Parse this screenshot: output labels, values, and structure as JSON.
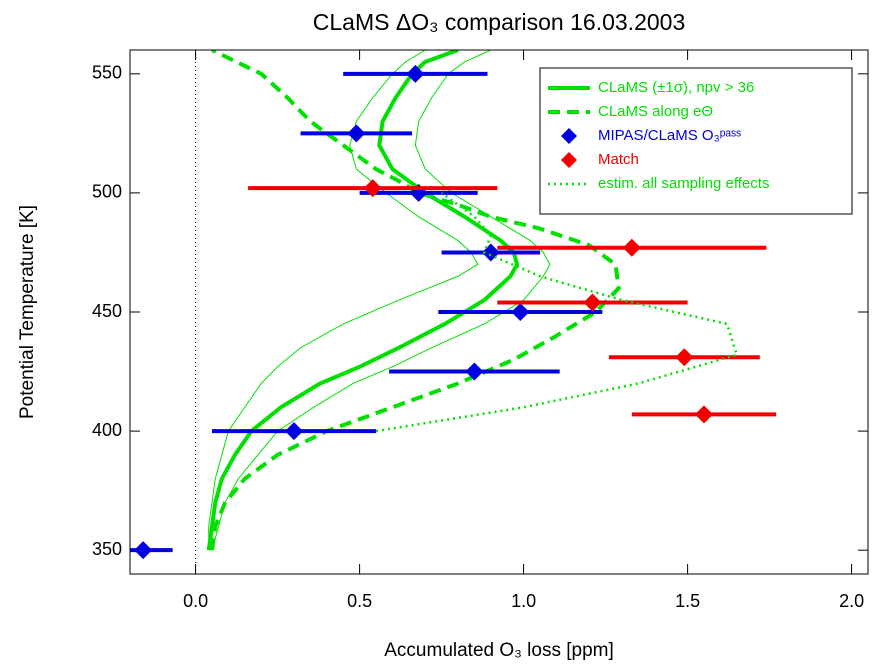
{
  "chart_data": {
    "type": "profile",
    "title": "CLaMS ΔO₃ comparison  16.03.2003",
    "x_label": "Accumulated O₃ loss [ppm]",
    "y_label": "Potential Temperature [K]",
    "xlim": [
      -0.2,
      2.05
    ],
    "ylim": [
      340,
      560
    ],
    "xticks": [
      {
        "value": 0,
        "label": "0.0"
      },
      {
        "value": 0.5,
        "label": "0.5"
      },
      {
        "value": 1,
        "label": "1.0"
      },
      {
        "value": 1.5,
        "label": "1.5"
      },
      {
        "value": 2,
        "label": "2.0"
      }
    ],
    "yticks": [
      350,
      400,
      450,
      500,
      550
    ],
    "legend": "top right",
    "series": [
      {
        "name": "CLaMS (±1σ), npv > 36",
        "kind": "line",
        "style": "solid",
        "color": "#00e000",
        "y": [
          350,
          360,
          370,
          380,
          385,
          390,
          400,
          410,
          420,
          427,
          435,
          445,
          455,
          465,
          470,
          475,
          480,
          490,
          500,
          510,
          520,
          530,
          540,
          550,
          555,
          560
        ],
        "x": [
          0.04,
          0.05,
          0.06,
          0.08,
          0.1,
          0.12,
          0.17,
          0.26,
          0.38,
          0.5,
          0.62,
          0.76,
          0.88,
          0.96,
          0.98,
          0.97,
          0.93,
          0.82,
          0.7,
          0.6,
          0.56,
          0.57,
          0.61,
          0.66,
          0.7,
          0.8
        ],
        "x_lower": [
          0.04,
          0.04,
          0.05,
          0.06,
          0.07,
          0.08,
          0.1,
          0.15,
          0.2,
          0.25,
          0.32,
          0.45,
          0.62,
          0.8,
          0.86,
          0.84,
          0.8,
          0.68,
          0.58,
          0.49,
          0.47,
          0.49,
          0.54,
          0.6,
          0.64,
          0.7
        ],
        "x_upper": [
          0.05,
          0.07,
          0.09,
          0.13,
          0.16,
          0.19,
          0.25,
          0.36,
          0.48,
          0.6,
          0.72,
          0.88,
          1.0,
          1.06,
          1.08,
          1.06,
          1.02,
          0.9,
          0.78,
          0.7,
          0.67,
          0.68,
          0.72,
          0.77,
          0.82,
          0.9
        ]
      },
      {
        "name": "CLaMS along eΘ",
        "kind": "line",
        "style": "dashed",
        "color": "#00e000",
        "y": [
          350,
          360,
          370,
          380,
          390,
          400,
          410,
          420,
          430,
          440,
          450,
          460,
          470,
          478,
          485,
          490,
          495,
          500,
          505,
          510,
          520,
          530,
          540,
          550,
          560
        ],
        "x": [
          0.05,
          0.06,
          0.09,
          0.15,
          0.25,
          0.4,
          0.6,
          0.8,
          0.97,
          1.1,
          1.22,
          1.29,
          1.28,
          1.2,
          1.05,
          0.9,
          0.8,
          0.68,
          0.62,
          0.55,
          0.45,
          0.35,
          0.28,
          0.2,
          0.05
        ]
      },
      {
        "name": "MIPAS/CLaMS O₃ᵖᵃˢˢ",
        "kind": "points",
        "color": "#0000e0",
        "x": [
          0.67,
          0.49,
          0.68,
          0.9,
          0.99,
          0.85,
          0.3,
          -0.16
        ],
        "y": [
          550,
          525,
          500,
          475,
          450,
          425,
          400,
          350
        ],
        "xerr": [
          0.22,
          0.17,
          0.18,
          0.15,
          0.25,
          0.26,
          0.25,
          0.09
        ]
      },
      {
        "name": "Match",
        "kind": "points",
        "color": "#f00000",
        "x": [
          0.54,
          1.33,
          1.21,
          1.49,
          1.55
        ],
        "y": [
          502,
          477,
          454,
          431,
          407
        ],
        "xerr": [
          0.38,
          0.41,
          0.29,
          0.23,
          0.22
        ]
      },
      {
        "name": "estim. all sampling effects",
        "kind": "line",
        "style": "dotted",
        "color": "#00e000",
        "y": [
          400,
          410,
          420,
          432,
          445,
          455,
          465,
          475,
          482,
          490,
          500
        ],
        "x": [
          0.55,
          1.0,
          1.35,
          1.65,
          1.62,
          1.3,
          1.05,
          0.88,
          0.9,
          0.85,
          0.75
        ]
      }
    ]
  }
}
